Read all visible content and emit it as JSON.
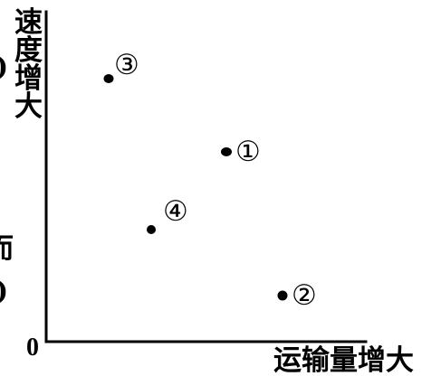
{
  "diagram": {
    "y_axis_label": [
      "速",
      "度",
      "增",
      "大"
    ],
    "x_axis_label": "运输量增大",
    "origin_label": "0",
    "points": [
      {
        "id": "point-3",
        "label": "③"
      },
      {
        "id": "point-1",
        "label": "①"
      },
      {
        "id": "point-4",
        "label": "④"
      },
      {
        "id": "point-2",
        "label": "②"
      }
    ],
    "left_edge_fragments": [
      ")",
      "而",
      ")"
    ]
  }
}
